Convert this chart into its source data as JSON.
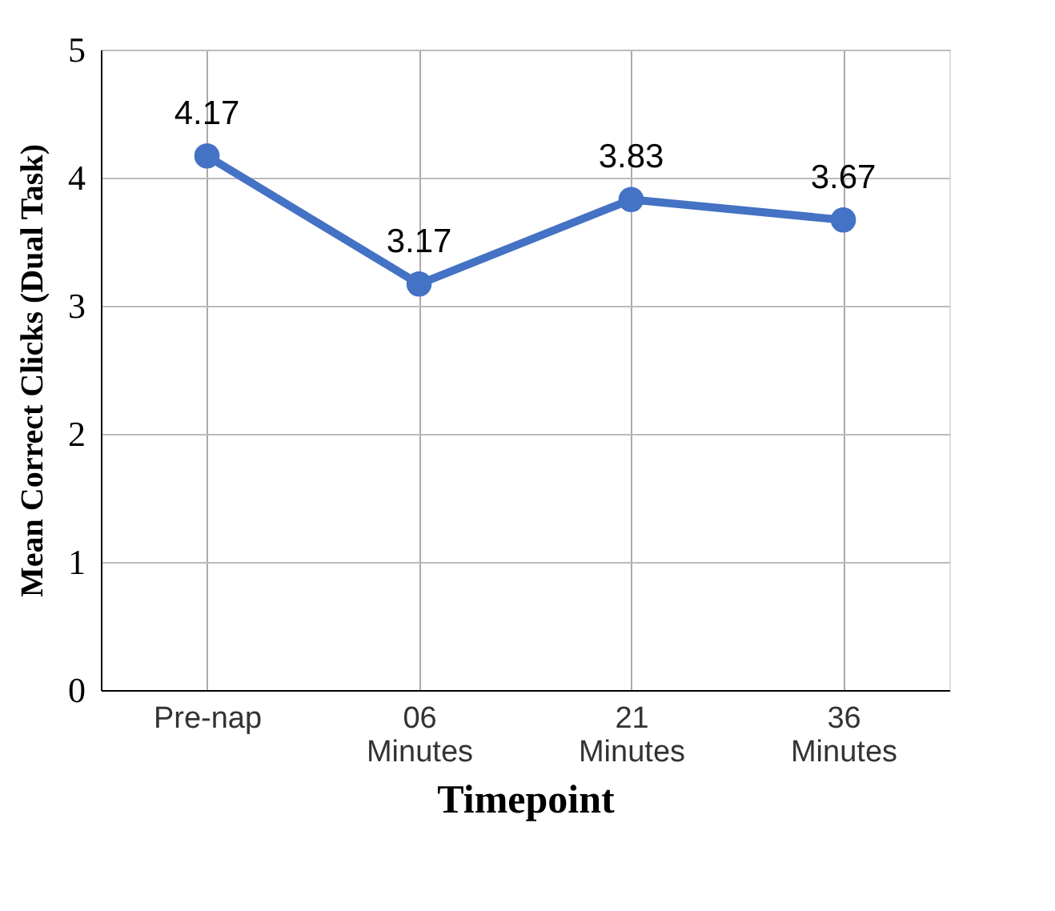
{
  "chart_data": {
    "type": "line",
    "xlabel": "Timepoint",
    "ylabel": "Mean Correct Clicks (Dual Task)",
    "categories": [
      "Pre-nap",
      "06 Minutes",
      "21 Minutes",
      "36 Minutes"
    ],
    "series": [
      {
        "color": "#4472c4",
        "values": [
          4.17,
          3.17,
          3.83,
          3.67
        ]
      }
    ],
    "ylim": [
      0,
      5
    ],
    "yticks": [
      0,
      1,
      2,
      3,
      4,
      5
    ],
    "grid": true,
    "marker": "circle",
    "line_style": "solid",
    "data_labels": true
  }
}
